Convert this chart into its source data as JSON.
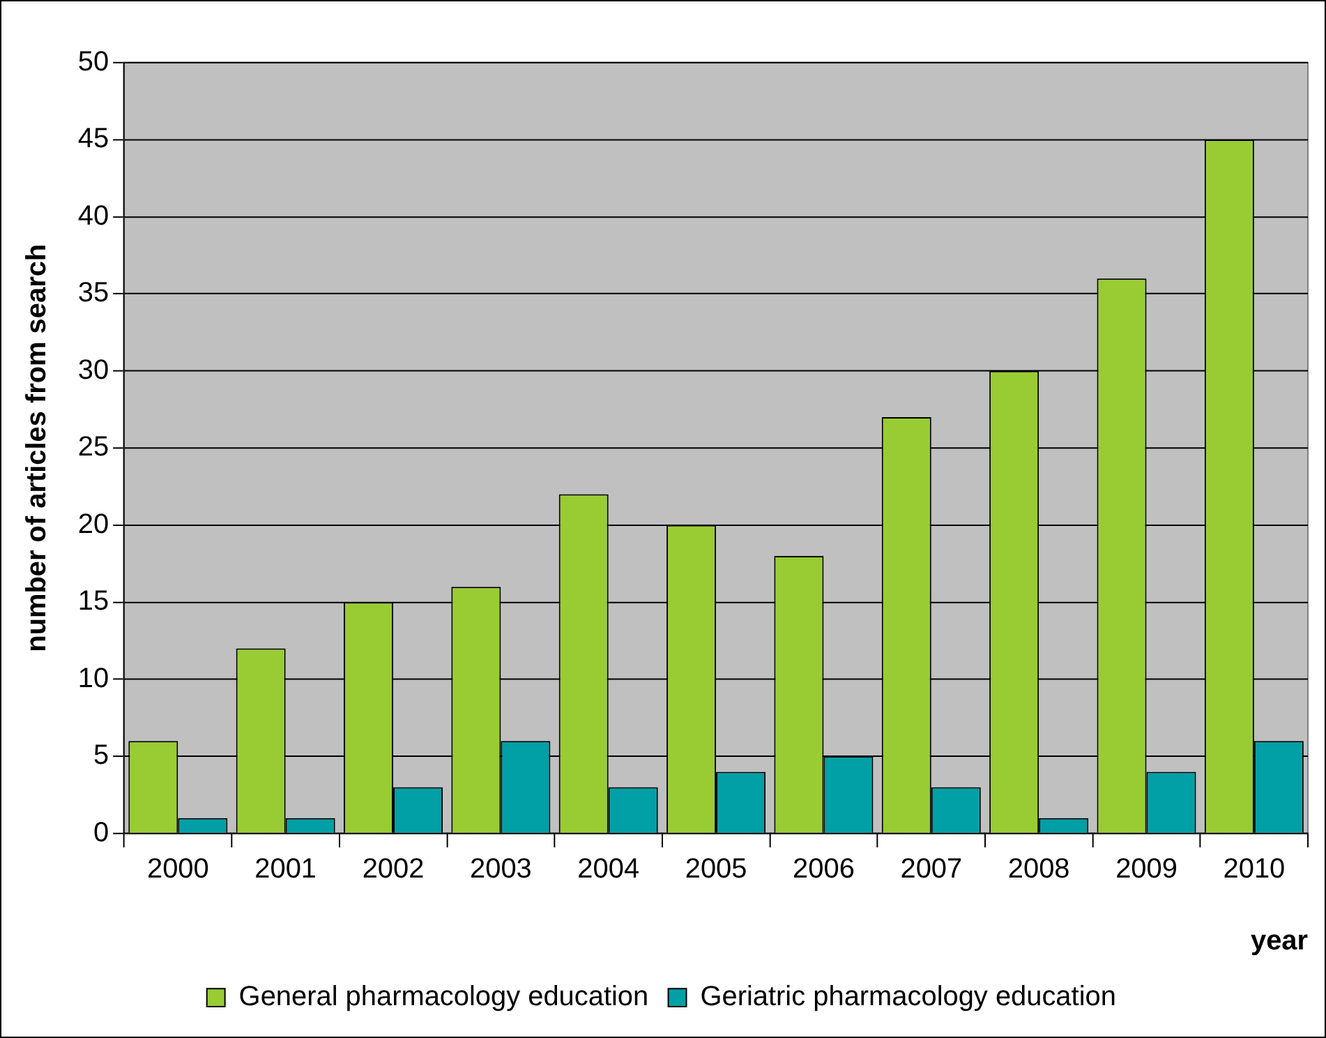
{
  "chart_data": {
    "type": "bar",
    "xlabel": "year",
    "ylabel": "number of articles from search",
    "categories": [
      "2000",
      "2001",
      "2002",
      "2003",
      "2004",
      "2005",
      "2006",
      "2007",
      "2008",
      "2009",
      "2010"
    ],
    "series": [
      {
        "name": "General pharmacology education",
        "color": "#99cc33",
        "values": [
          6,
          12,
          15,
          16,
          22,
          20,
          18,
          27,
          30,
          36,
          45
        ]
      },
      {
        "name": "Geriatric pharmacology education",
        "color": "#00a0a6",
        "values": [
          1,
          1,
          3,
          6,
          3,
          4,
          5,
          3,
          1,
          4,
          6
        ]
      }
    ],
    "ylim": [
      0,
      50
    ],
    "yticks": [
      0,
      5,
      10,
      15,
      20,
      25,
      30,
      35,
      40,
      45,
      50
    ],
    "grid": "y",
    "legend": "bottom"
  }
}
